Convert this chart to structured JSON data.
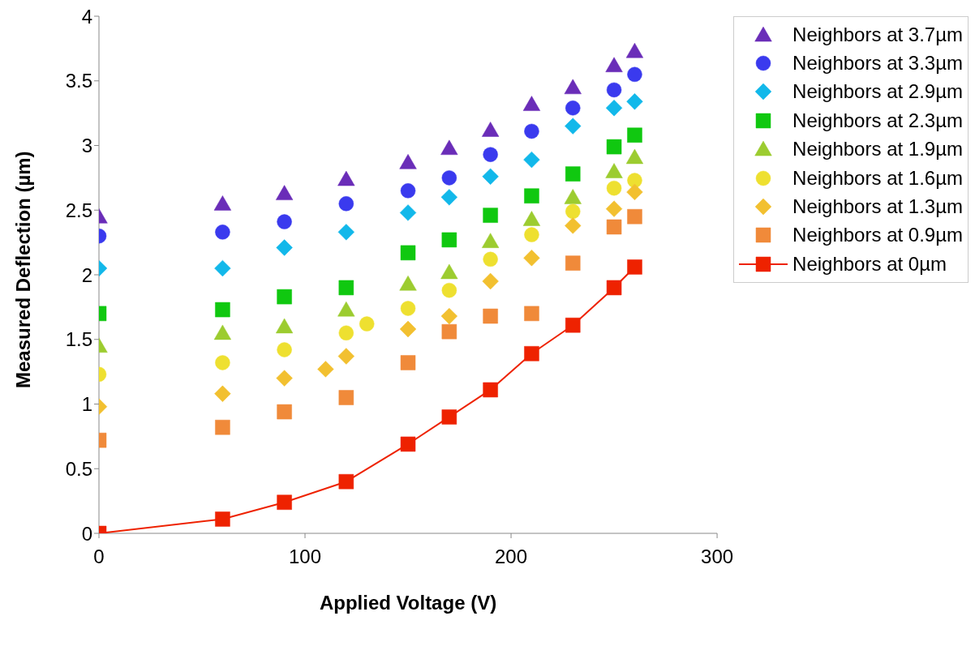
{
  "chart_data": {
    "type": "scatter",
    "xlabel": "Applied Voltage (V)",
    "ylabel": "Measured Deflection (µm)",
    "xlim": [
      0,
      300
    ],
    "xticks": [
      0,
      100,
      200,
      300
    ],
    "ylim": [
      0,
      4
    ],
    "yticks": [
      0,
      0.5,
      1,
      1.5,
      2,
      2.5,
      3,
      3.5,
      4
    ],
    "grid": false,
    "legend": "right",
    "x": [
      0,
      60,
      90,
      120,
      150,
      170,
      190,
      210,
      230,
      250,
      260
    ],
    "series": [
      {
        "name": "Neighbors at 3.7µm",
        "color": "#6a2db8",
        "marker": "triangle",
        "values": [
          2.45,
          2.55,
          2.63,
          2.74,
          2.87,
          2.98,
          3.12,
          3.32,
          3.45,
          3.62,
          3.73
        ]
      },
      {
        "name": "Neighbors at 3.3µm",
        "color": "#3a3aee",
        "marker": "circle",
        "values": [
          2.3,
          2.33,
          2.41,
          2.55,
          2.65,
          2.75,
          2.93,
          3.11,
          3.29,
          3.43,
          3.55
        ]
      },
      {
        "name": "Neighbors at 2.9µm",
        "color": "#12b8ea",
        "marker": "diamond",
        "values": [
          2.05,
          2.05,
          2.21,
          2.33,
          2.48,
          2.6,
          2.76,
          2.89,
          3.15,
          3.29,
          3.34
        ]
      },
      {
        "name": "Neighbors at 2.3µm",
        "color": "#10c810",
        "marker": "square",
        "values": [
          1.7,
          1.73,
          1.83,
          1.9,
          2.17,
          2.27,
          2.46,
          2.61,
          2.78,
          2.99,
          3.08
        ]
      },
      {
        "name": "Neighbors at 1.9µm",
        "color": "#9ccc30",
        "marker": "triangle",
        "values": [
          1.45,
          1.55,
          1.6,
          1.73,
          1.93,
          2.02,
          2.26,
          2.43,
          2.6,
          2.8,
          2.91
        ]
      },
      {
        "name": "Neighbors at 1.6µm",
        "color": "#eee030",
        "marker": "circle",
        "x": [
          0,
          60,
          90,
          120,
          130,
          150,
          170,
          190,
          210,
          230,
          250,
          260
        ],
        "values": [
          1.23,
          1.32,
          1.42,
          1.55,
          1.62,
          1.74,
          1.88,
          2.12,
          2.31,
          2.49,
          2.67,
          2.73
        ]
      },
      {
        "name": "Neighbors at 1.3µm",
        "color": "#f2c030",
        "marker": "diamond",
        "x": [
          0,
          60,
          90,
          110,
          120,
          150,
          170,
          190,
          210,
          230,
          250,
          260
        ],
        "values": [
          0.98,
          1.08,
          1.2,
          1.27,
          1.37,
          1.58,
          1.68,
          1.95,
          2.13,
          2.38,
          2.51,
          2.64
        ]
      },
      {
        "name": "Neighbors at 0.9µm",
        "color": "#f08a3a",
        "marker": "square",
        "values": [
          0.72,
          0.82,
          0.94,
          1.05,
          1.32,
          1.56,
          1.68,
          1.7,
          2.09,
          2.37,
          2.45
        ]
      },
      {
        "name": "Neighbors at 0µm",
        "type": "line",
        "color": "#ee2200",
        "marker": "square",
        "line_style": "solid",
        "values": [
          0,
          0.11,
          0.24,
          0.4,
          0.69,
          0.9,
          1.11,
          1.39,
          1.61,
          1.9,
          2.06
        ]
      }
    ]
  }
}
